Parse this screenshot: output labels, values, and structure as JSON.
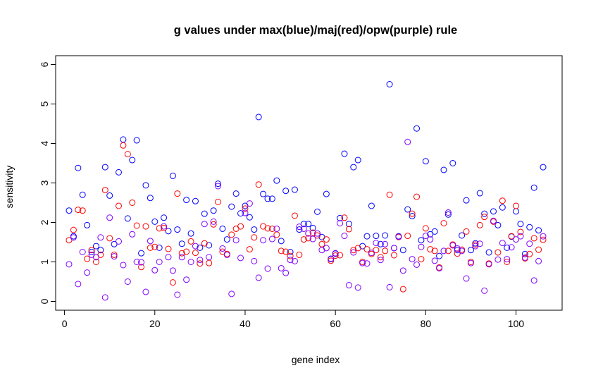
{
  "chart_data": {
    "type": "scatter",
    "title": "g values under max(blue)/maj(red)/opw(purple) rule",
    "xlabel": "gene index",
    "ylabel": "sensitivity",
    "xlim": [
      0,
      106
    ],
    "ylim": [
      -0.2,
      6.2
    ],
    "xticks": [
      0,
      20,
      40,
      60,
      80,
      100
    ],
    "yticks": [
      0,
      1,
      2,
      3,
      4,
      5,
      6
    ],
    "grid": false,
    "legend": "none",
    "marker": "open-circle",
    "series": [
      {
        "color": "#0000ff",
        "x": [
          1,
          2,
          3,
          4,
          5,
          6,
          7,
          8,
          9,
          10,
          11,
          12,
          13,
          14,
          15,
          16,
          17,
          18,
          19,
          20,
          21,
          22,
          23,
          24,
          25,
          26,
          27,
          28,
          29,
          30,
          31,
          32,
          33,
          34,
          35,
          36,
          37,
          38,
          39,
          40,
          41,
          42,
          43,
          44,
          45,
          46,
          47,
          48,
          49,
          50,
          51,
          52,
          53,
          54,
          55,
          56,
          57,
          58,
          59,
          60,
          61,
          62,
          63,
          64,
          65,
          66,
          67,
          68,
          69,
          70,
          71,
          72,
          73,
          74,
          75,
          76,
          77,
          78,
          79,
          80,
          81,
          82,
          83,
          84,
          85,
          86,
          87,
          88,
          89,
          90,
          91,
          92,
          93,
          94,
          95,
          96,
          97,
          98,
          99,
          100,
          101,
          102,
          103,
          104,
          105,
          106
        ],
        "y": [
          2.3,
          1.65,
          3.38,
          2.7,
          1.93,
          1.25,
          1.4,
          1.3,
          3.4,
          2.68,
          1.45,
          3.27,
          4.1,
          2.1,
          3.58,
          4.08,
          1.22,
          2.94,
          2.62,
          2.02,
          1.36,
          2.12,
          1.78,
          3.18,
          1.82,
          1.46,
          2.57,
          1.72,
          2.54,
          1.36,
          2.22,
          1.42,
          2.3,
          2.98,
          1.84,
          1.57,
          2.4,
          2.73,
          2.23,
          2.42,
          2.13,
          1.82,
          4.67,
          2.72,
          2.6,
          2.6,
          3.06,
          1.53,
          2.8,
          1.25,
          2.83,
          1.82,
          1.96,
          1.96,
          1.86,
          2.27,
          1.63,
          2.72,
          1.08,
          1.21,
          2.11,
          3.74,
          1.96,
          3.4,
          3.58,
          1.4,
          1.65,
          2.42,
          1.66,
          1.45,
          1.67,
          5.5,
          1.35,
          1.65,
          1.3,
          2.33,
          2.16,
          4.38,
          1.55,
          3.55,
          1.7,
          1.77,
          1.15,
          3.33,
          2.2,
          3.5,
          1.3,
          1.67,
          2.56,
          1.3,
          1.47,
          2.74,
          2.22,
          1.24,
          2.28,
          1.93,
          2.38,
          1.36,
          1.64,
          2.28,
          1.96,
          1.2,
          1.88,
          2.88,
          1.8,
          3.4
        ]
      },
      {
        "color": "#ff0000",
        "x": [
          1,
          2,
          3,
          4,
          5,
          6,
          7,
          8,
          9,
          10,
          11,
          12,
          13,
          14,
          15,
          16,
          17,
          18,
          19,
          20,
          21,
          22,
          23,
          24,
          25,
          26,
          27,
          28,
          29,
          30,
          31,
          32,
          33,
          34,
          35,
          36,
          37,
          38,
          39,
          40,
          41,
          42,
          43,
          44,
          45,
          46,
          47,
          48,
          49,
          50,
          51,
          52,
          53,
          54,
          55,
          56,
          57,
          58,
          59,
          60,
          61,
          62,
          63,
          64,
          65,
          66,
          67,
          68,
          69,
          70,
          71,
          72,
          73,
          74,
          75,
          76,
          77,
          78,
          79,
          80,
          81,
          82,
          83,
          84,
          85,
          86,
          87,
          88,
          89,
          90,
          91,
          92,
          93,
          94,
          95,
          96,
          97,
          98,
          99,
          100,
          101,
          102,
          103,
          104,
          105,
          106
        ],
        "y": [
          1.55,
          1.81,
          2.32,
          2.3,
          1.08,
          1.3,
          1.0,
          1.18,
          2.82,
          1.6,
          1.18,
          2.42,
          3.95,
          3.73,
          2.5,
          1.92,
          0.87,
          1.9,
          1.36,
          1.38,
          1.85,
          1.86,
          1.33,
          0.48,
          2.73,
          1.22,
          1.26,
          1.52,
          1.23,
          0.96,
          1.47,
          0.97,
          1.95,
          2.52,
          1.26,
          1.2,
          1.69,
          1.84,
          1.9,
          2.35,
          1.32,
          1.62,
          2.96,
          1.9,
          1.85,
          1.84,
          1.69,
          1.28,
          1.26,
          1.15,
          2.17,
          1.18,
          1.57,
          1.6,
          1.74,
          1.67,
          1.45,
          1.57,
          1.03,
          1.16,
          1.17,
          2.12,
          1.83,
          1.3,
          1.35,
          1.0,
          1.32,
          1.2,
          1.3,
          1.12,
          1.28,
          2.7,
          1.17,
          1.63,
          0.31,
          1.66,
          2.22,
          2.65,
          1.07,
          1.85,
          1.32,
          1.28,
          0.86,
          1.98,
          1.28,
          1.44,
          1.21,
          1.31,
          1.77,
          1.0,
          1.44,
          1.93,
          2.14,
          0.96,
          2.02,
          1.24,
          2.55,
          1.0,
          1.65,
          2.42,
          1.76,
          1.09,
          1.2,
          1.6,
          1.31,
          1.56
        ]
      },
      {
        "color": "#8000ff",
        "x": [
          1,
          2,
          3,
          4,
          5,
          6,
          7,
          8,
          9,
          10,
          11,
          12,
          13,
          14,
          15,
          16,
          17,
          18,
          19,
          20,
          21,
          22,
          23,
          24,
          25,
          26,
          27,
          28,
          29,
          30,
          31,
          32,
          33,
          34,
          35,
          36,
          37,
          38,
          39,
          40,
          41,
          42,
          43,
          44,
          45,
          46,
          47,
          48,
          49,
          50,
          51,
          52,
          53,
          54,
          55,
          56,
          57,
          58,
          59,
          60,
          61,
          62,
          63,
          64,
          65,
          66,
          67,
          68,
          69,
          70,
          71,
          72,
          73,
          74,
          75,
          76,
          77,
          78,
          79,
          80,
          81,
          82,
          83,
          84,
          85,
          86,
          87,
          88,
          89,
          90,
          91,
          92,
          93,
          94,
          95,
          96,
          97,
          98,
          99,
          100,
          101,
          102,
          103,
          104,
          105,
          106
        ],
        "y": [
          0.94,
          1.62,
          0.44,
          1.25,
          0.73,
          1.18,
          1.12,
          1.62,
          0.1,
          2.12,
          1.14,
          1.52,
          0.92,
          0.5,
          1.7,
          1.0,
          0.99,
          0.24,
          1.53,
          0.79,
          1.0,
          1.9,
          1.12,
          0.78,
          0.17,
          1.12,
          0.55,
          1.0,
          1.4,
          1.05,
          1.96,
          1.12,
          2.02,
          2.92,
          1.34,
          1.18,
          0.19,
          1.55,
          1.1,
          2.24,
          2.48,
          1.02,
          0.6,
          1.55,
          0.83,
          1.58,
          1.84,
          0.84,
          0.72,
          1.05,
          1.02,
          1.89,
          1.84,
          1.72,
          1.58,
          1.72,
          1.3,
          1.35,
          1.07,
          1.22,
          1.98,
          1.66,
          0.41,
          1.24,
          0.35,
          0.97,
          0.96,
          1.23,
          1.48,
          1.05,
          1.45,
          0.36,
          1.35,
          1.64,
          0.78,
          4.04,
          1.07,
          0.93,
          1.38,
          1.66,
          1.57,
          1.03,
          0.84,
          1.28,
          2.25,
          1.42,
          1.34,
          1.28,
          0.58,
          0.97,
          1.4,
          1.46,
          0.27,
          0.94,
          2.04,
          1.06,
          1.48,
          1.07,
          1.37,
          1.57,
          1.65,
          1.11,
          1.46,
          0.53,
          1.02,
          1.65
        ]
      }
    ]
  }
}
